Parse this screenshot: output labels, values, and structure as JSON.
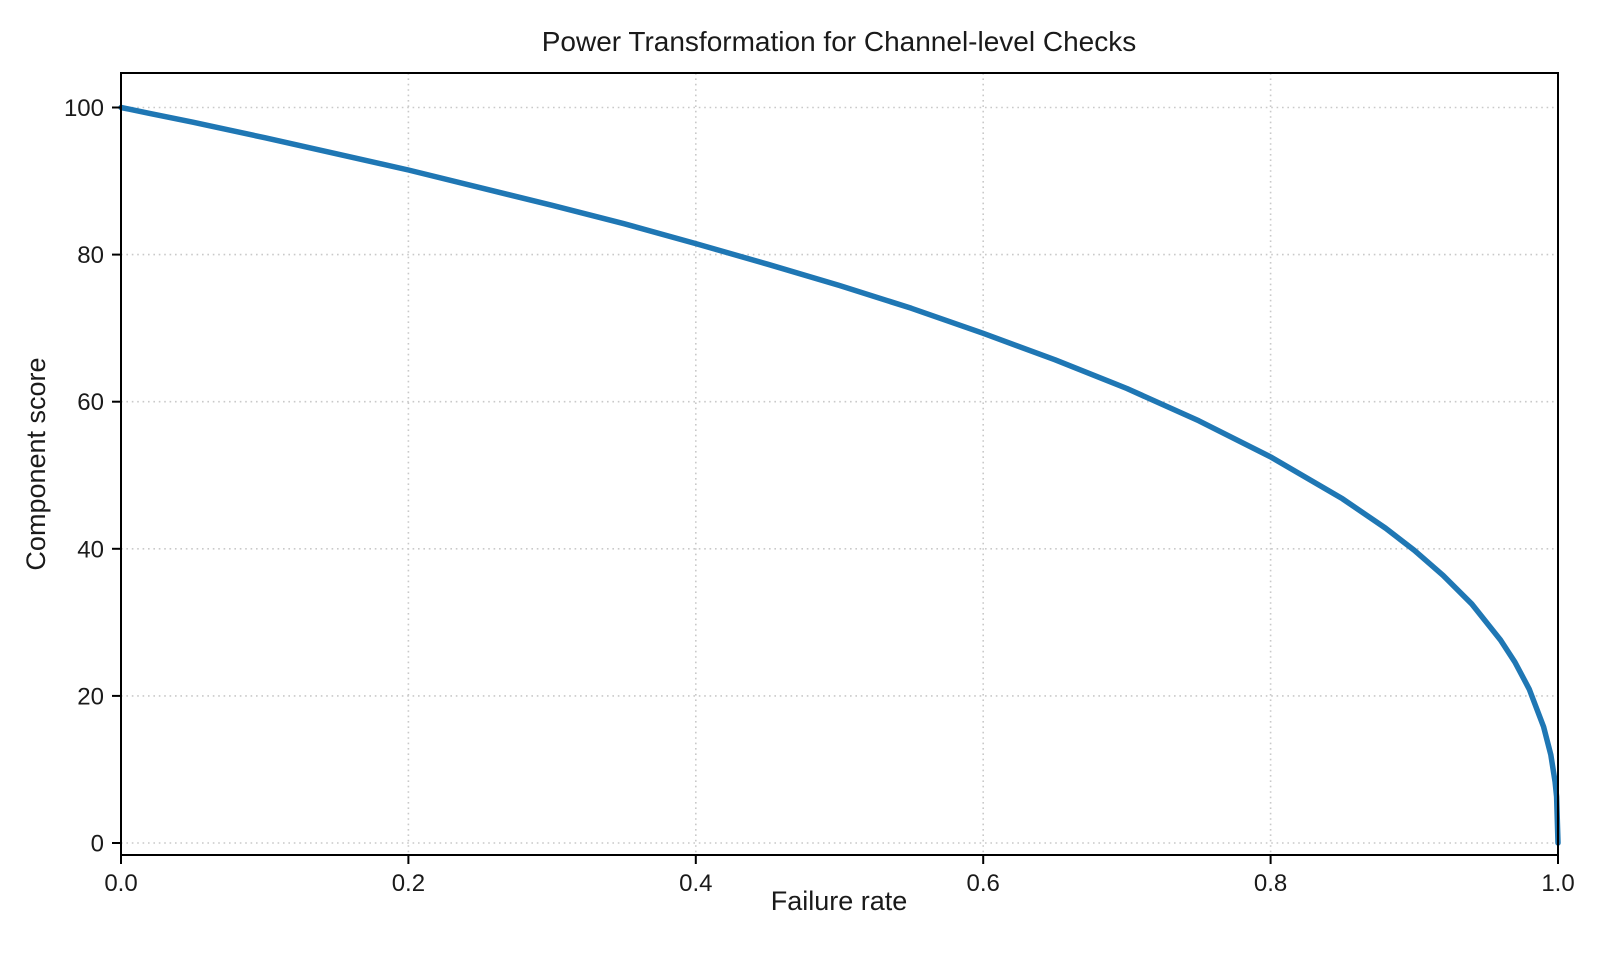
{
  "figure": {
    "title": "Power Transformation for Channel-level Checks",
    "xlabel": "Failure rate",
    "ylabel": "Component score"
  },
  "chart_data": {
    "type": "line",
    "title": "Power Transformation for Channel-level Checks",
    "xlabel": "Failure rate",
    "ylabel": "Component score",
    "xlim": [
      0.0,
      1.0
    ],
    "ylim": [
      0,
      100
    ],
    "xticks": [
      {
        "label": "0.0",
        "value": 0.0
      },
      {
        "label": "0.2",
        "value": 0.2
      },
      {
        "label": "0.4",
        "value": 0.4
      },
      {
        "label": "0.6",
        "value": 0.6
      },
      {
        "label": "0.8",
        "value": 0.8
      },
      {
        "label": "1.0",
        "value": 1.0
      }
    ],
    "yticks": [
      {
        "label": "0",
        "value": 0
      },
      {
        "label": "20",
        "value": 20
      },
      {
        "label": "40",
        "value": 40
      },
      {
        "label": "60",
        "value": 60
      },
      {
        "label": "80",
        "value": 80
      },
      {
        "label": "100",
        "value": 100
      }
    ],
    "grid": "dotted",
    "legend": "none",
    "line_color": "#1f77b4",
    "grid_color": "#c9c9c9",
    "spine_color": "#000000",
    "text_color": "#1a1a1a",
    "series": [
      {
        "name": "component-score-curve",
        "x": [
          0.0,
          0.02,
          0.05,
          0.1,
          0.15,
          0.2,
          0.25,
          0.3,
          0.35,
          0.4,
          0.45,
          0.5,
          0.55,
          0.6,
          0.65,
          0.7,
          0.75,
          0.8,
          0.85,
          0.88,
          0.9,
          0.92,
          0.94,
          0.96,
          0.97,
          0.98,
          0.99,
          0.995,
          0.998,
          0.999,
          1.0
        ],
        "y": [
          100.0,
          99.2,
          98.0,
          95.9,
          93.7,
          91.5,
          89.1,
          86.7,
          84.2,
          81.5,
          78.7,
          75.8,
          72.7,
          69.3,
          65.7,
          61.8,
          57.4,
          52.5,
          46.8,
          42.8,
          39.8,
          36.4,
          32.5,
          27.6,
          24.6,
          20.9,
          15.8,
          12.0,
          8.3,
          6.3,
          0.0
        ]
      }
    ]
  }
}
